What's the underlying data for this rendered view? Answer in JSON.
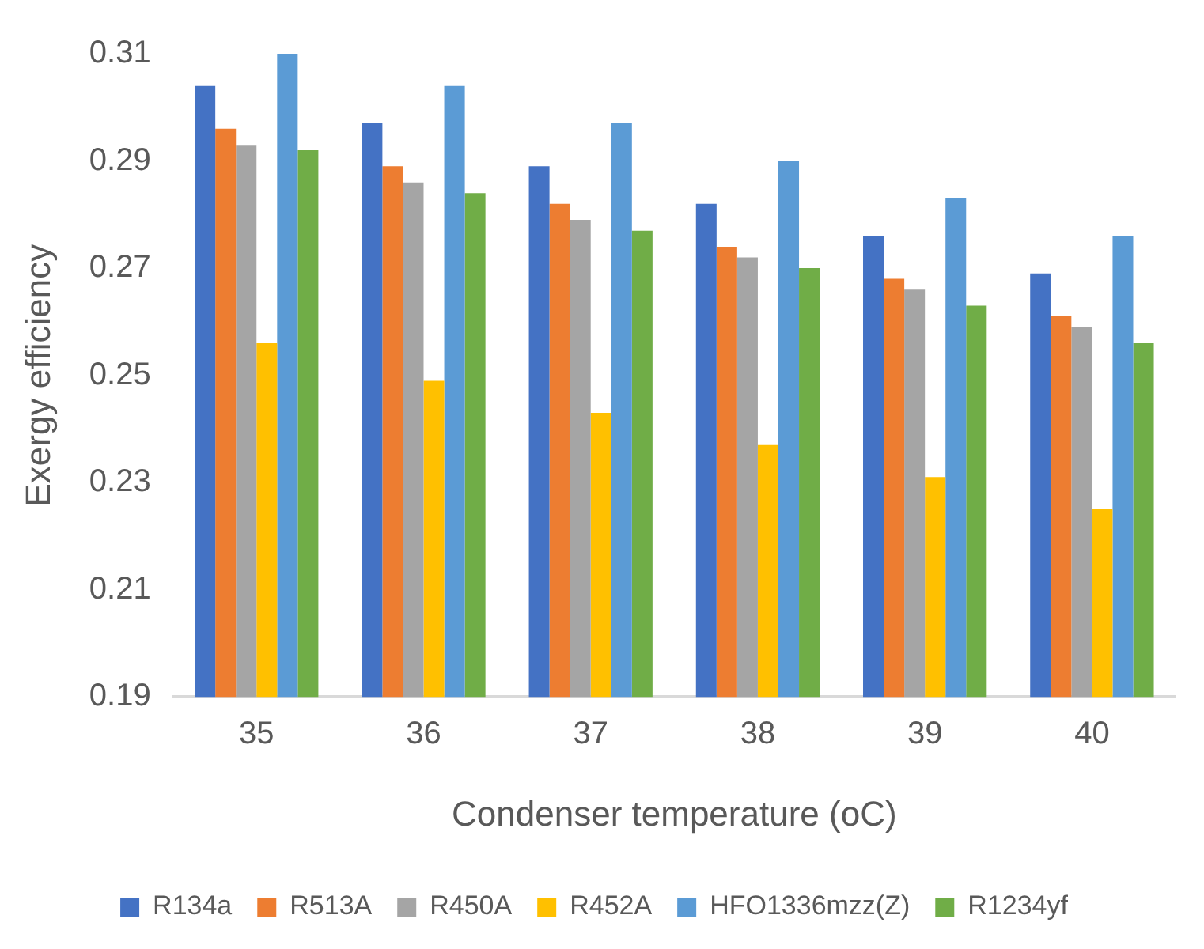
{
  "chart_data": {
    "type": "bar",
    "xlabel": "Condenser temperature (oC)",
    "ylabel": "Exergy efficiency",
    "categories": [
      "35",
      "36",
      "37",
      "38",
      "39",
      "40"
    ],
    "series": [
      {
        "name": "R134a",
        "color": "#4472c4",
        "values": [
          0.304,
          0.297,
          0.289,
          0.282,
          0.276,
          0.269
        ]
      },
      {
        "name": "R513A",
        "color": "#ed7d31",
        "values": [
          0.296,
          0.289,
          0.282,
          0.274,
          0.268,
          0.261
        ]
      },
      {
        "name": "R450A",
        "color": "#a5a5a5",
        "values": [
          0.293,
          0.286,
          0.279,
          0.272,
          0.266,
          0.259
        ]
      },
      {
        "name": "R452A",
        "color": "#ffc000",
        "values": [
          0.256,
          0.249,
          0.243,
          0.237,
          0.231,
          0.225
        ]
      },
      {
        "name": "HFO1336mzz(Z)",
        "color": "#5b9bd5",
        "values": [
          0.31,
          0.304,
          0.297,
          0.29,
          0.283,
          0.276
        ]
      },
      {
        "name": "R1234yf",
        "color": "#70ad47",
        "values": [
          0.292,
          0.284,
          0.277,
          0.27,
          0.263,
          0.256
        ]
      }
    ],
    "ylim": [
      0.19,
      0.31
    ],
    "yticks": [
      0.19,
      0.21,
      0.23,
      0.25,
      0.27,
      0.29,
      0.31
    ],
    "grid": false,
    "legend": "bottom"
  }
}
